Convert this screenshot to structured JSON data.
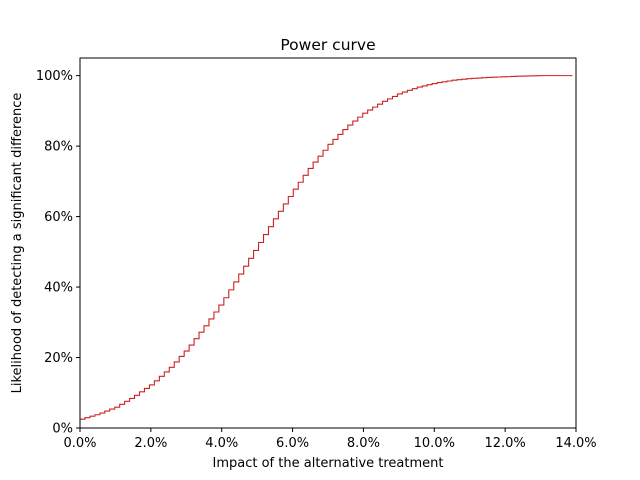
{
  "chart_data": {
    "type": "line",
    "step": true,
    "title": "Power curve",
    "xlabel": "Impact of the alternative treatment",
    "ylabel": "Likelihood of detecting a significant difference",
    "xlim": [
      0.0,
      0.14
    ],
    "ylim": [
      0.0,
      1.05
    ],
    "x_ticks": [
      0.0,
      0.02,
      0.04,
      0.06,
      0.08,
      0.1,
      0.12,
      0.14
    ],
    "x_tick_labels": [
      "0.0%",
      "2.0%",
      "4.0%",
      "6.0%",
      "8.0%",
      "10.0%",
      "12.0%",
      "14.0%"
    ],
    "y_ticks": [
      0.0,
      0.2,
      0.4,
      0.6,
      0.8,
      1.0
    ],
    "y_tick_labels": [
      "0%",
      "20%",
      "40%",
      "60%",
      "80%",
      "100%"
    ],
    "grid": false,
    "legend": "none",
    "line_color": "#cc2222",
    "series": [
      {
        "x": [
          0.0,
          0.005,
          0.01,
          0.015,
          0.02,
          0.025,
          0.03,
          0.035,
          0.04,
          0.045,
          0.05,
          0.055,
          0.06,
          0.065,
          0.07,
          0.075,
          0.08,
          0.085,
          0.09,
          0.095,
          0.1,
          0.105,
          0.11,
          0.115,
          0.12,
          0.125,
          0.13,
          0.135,
          0.139
        ],
        "y": [
          0.025,
          0.04,
          0.06,
          0.09,
          0.125,
          0.17,
          0.225,
          0.29,
          0.36,
          0.44,
          0.52,
          0.6,
          0.675,
          0.745,
          0.805,
          0.855,
          0.895,
          0.925,
          0.95,
          0.967,
          0.979,
          0.987,
          0.992,
          0.995,
          0.997,
          0.999,
          1.0,
          1.0,
          1.0
        ]
      }
    ]
  }
}
